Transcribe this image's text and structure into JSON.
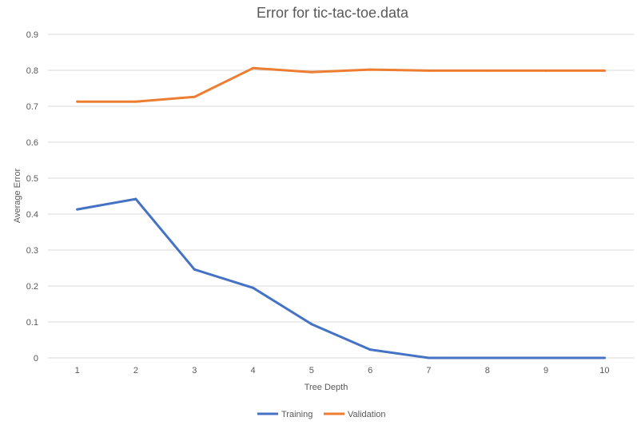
{
  "chart_data": {
    "type": "line",
    "title": "Error for tic-tac-toe.data",
    "xlabel": "Tree Depth",
    "ylabel": "Average Error",
    "x": [
      1,
      2,
      3,
      4,
      5,
      6,
      7,
      8,
      9,
      10
    ],
    "ylim": [
      0,
      0.9
    ],
    "yticks": [
      "0",
      "0.1",
      "0.2",
      "0.3",
      "0.4",
      "0.5",
      "0.6",
      "0.7",
      "0.8",
      "0.9"
    ],
    "xticks": [
      "1",
      "2",
      "3",
      "4",
      "5",
      "6",
      "7",
      "8",
      "9",
      "10"
    ],
    "grid": "horizontal",
    "legend_position": "bottom",
    "series": [
      {
        "name": "Training",
        "color": "#4472C4",
        "values": [
          0.413,
          0.442,
          0.246,
          0.195,
          0.094,
          0.023,
          0.0,
          0.0,
          0.0,
          0.0
        ]
      },
      {
        "name": "Validation",
        "color": "#ED7D31",
        "values": [
          0.713,
          0.713,
          0.726,
          0.806,
          0.795,
          0.802,
          0.799,
          0.799,
          0.799,
          0.799
        ]
      }
    ]
  }
}
